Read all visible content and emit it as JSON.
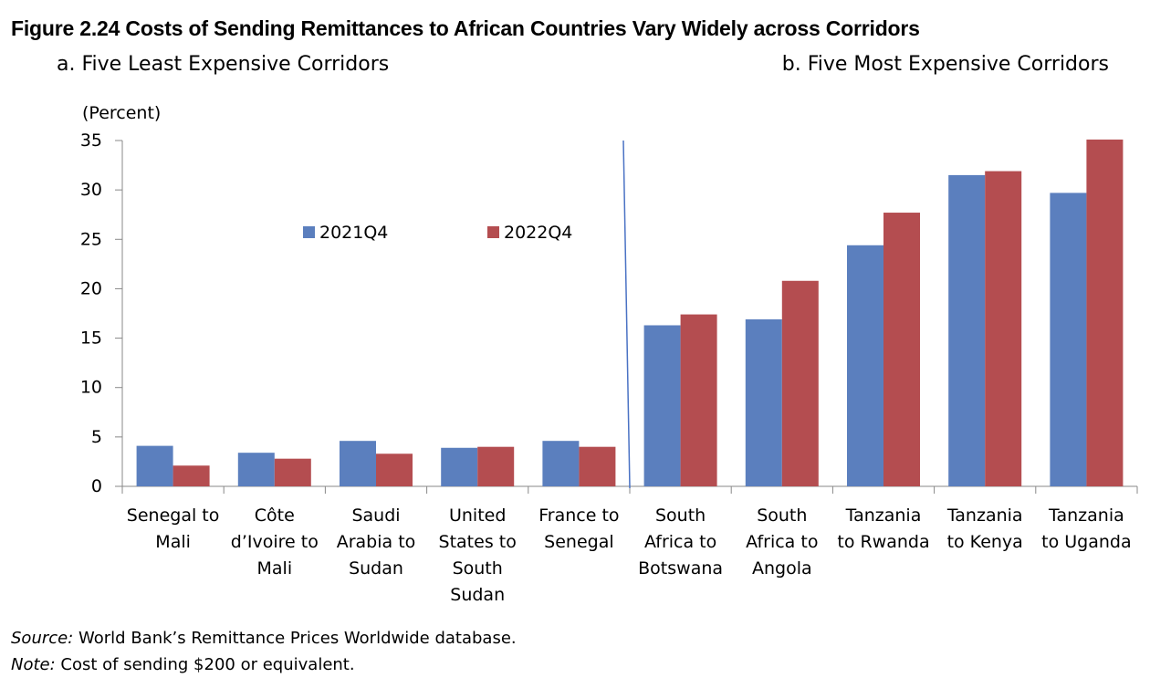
{
  "title": "Figure 2.24 Costs of Sending Remittances to African Countries Vary Widely across Corridors",
  "subtitles": {
    "a": "a. Five Least Expensive Corridors",
    "b": "b. Five Most Expensive Corridors"
  },
  "footer": {
    "source_label": "Source:",
    "source_text": " World Bank’s Remittance Prices Worldwide database.",
    "note_label": "Note:",
    "note_text": " Cost of sending $200 or equivalent."
  },
  "colors": {
    "series_2021": "#5b7fbe",
    "series_2022": "#b44d50",
    "divider": "#4a72c4"
  },
  "chart_data": {
    "type": "bar",
    "ylabel": "(Percent)",
    "ylim": [
      0,
      35
    ],
    "yticks": [
      0,
      5,
      10,
      15,
      20,
      25,
      30,
      35
    ],
    "grid": false,
    "legend_position": "top-left, inside panel a",
    "categories": [
      [
        "Senegal to",
        "Mali"
      ],
      [
        "Côte",
        "d’Ivoire to",
        "Mali"
      ],
      [
        "Saudi",
        "Arabia to",
        "Sudan"
      ],
      [
        "United",
        "States to",
        "South",
        "Sudan"
      ],
      [
        "France to",
        "Senegal"
      ],
      [
        "South",
        "Africa to",
        "Botswana"
      ],
      [
        "South",
        "Africa to",
        "Angola"
      ],
      [
        "Tanzania",
        "to Rwanda"
      ],
      [
        "Tanzania",
        "to Kenya"
      ],
      [
        "Tanzania",
        "to Uganda"
      ]
    ],
    "series": [
      {
        "name": "2021Q4",
        "color": "#5b7fbe",
        "values": [
          4.1,
          3.4,
          4.6,
          3.9,
          4.6,
          16.3,
          16.9,
          24.4,
          31.5,
          29.7
        ]
      },
      {
        "name": "2022Q4",
        "color": "#b44d50",
        "values": [
          2.1,
          2.8,
          3.3,
          4.0,
          4.0,
          17.4,
          20.8,
          27.7,
          31.9,
          35.1
        ]
      }
    ]
  }
}
